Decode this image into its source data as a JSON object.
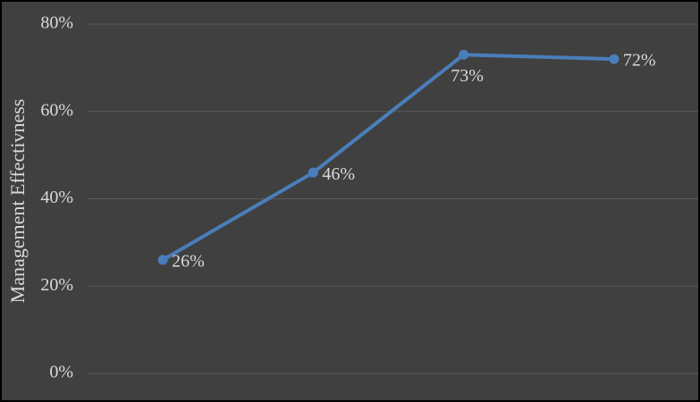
{
  "chart_data": {
    "type": "line",
    "y_label": "Management Effectivness",
    "categories": [
      null,
      null,
      null,
      null
    ],
    "series": [
      {
        "name": null,
        "color": "#4a7ebb",
        "values": [
          26,
          46,
          73,
          72
        ],
        "value_labels": [
          "26%",
          "46%",
          "73%",
          "72%"
        ]
      }
    ],
    "ylim": [
      0,
      80
    ],
    "yticks": [
      {
        "value": 0,
        "label": "0%"
      },
      {
        "value": 20,
        "label": "20%"
      },
      {
        "value": 40,
        "label": "40%"
      },
      {
        "value": 60,
        "label": "60%"
      },
      {
        "value": 80,
        "label": "80%"
      }
    ],
    "grid": true
  }
}
